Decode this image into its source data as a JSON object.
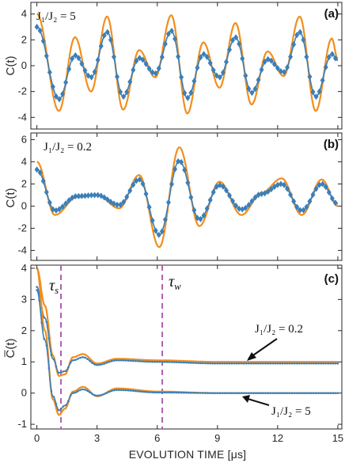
{
  "colors": {
    "theory": "#f28e1c",
    "data": "#3b7fb9",
    "marker": "#3b7fb9",
    "vline": "#b060b0",
    "axis": "#262626"
  },
  "xaxis": {
    "label": "EVOLUTION TIME [μs]",
    "ticks": [
      "0",
      "3",
      "6",
      "9",
      "12",
      "15"
    ],
    "range": [
      -0.3,
      15.2
    ]
  },
  "chart_data": [
    {
      "type": "line",
      "panel": "(a)",
      "annotation": "J₁/J₂ = 5",
      "ylabel": "C(t)",
      "ylim": [
        -4.9,
        4.9
      ],
      "yticks": [
        "4",
        "2",
        "0",
        "-2",
        "-4"
      ],
      "series": [
        {
          "style": "theory",
          "x": [
            0,
            1.1,
            1.9,
            2.7,
            3.5,
            4.3,
            5.1,
            5.9,
            6.7,
            7.5,
            8.3,
            9.1,
            9.9,
            10.7,
            11.5,
            12.3,
            13.1,
            13.9,
            14.7,
            15.0
          ],
          "y": [
            4.0,
            -3.5,
            2.2,
            -2.0,
            3.8,
            -3.4,
            1.2,
            -0.9,
            3.9,
            -3.7,
            1.8,
            -1.7,
            3.3,
            -3.0,
            1.1,
            -0.8,
            3.8,
            -3.5,
            2.1,
            0.5
          ]
        },
        {
          "style": "data",
          "x": [
            0,
            1.1,
            1.9,
            2.7,
            3.5,
            4.3,
            5.1,
            5.9,
            6.7,
            7.5,
            8.3,
            9.1,
            9.9,
            10.7,
            11.5,
            12.3,
            13.1,
            13.9,
            14.7,
            15.0
          ],
          "y": [
            3.0,
            -2.6,
            0.8,
            -0.9,
            2.6,
            -2.4,
            0.6,
            -0.6,
            2.7,
            -2.5,
            0.9,
            -0.9,
            2.2,
            -2.1,
            0.5,
            -0.5,
            2.6,
            -2.4,
            0.9,
            0.4
          ]
        }
      ]
    },
    {
      "type": "line",
      "panel": "(b)",
      "annotation": "J₁/J₂ = 0.2",
      "ylabel": "C(t)",
      "ylim": [
        -4.9,
        6.6
      ],
      "yticks": [
        "6",
        "4",
        "2",
        "0",
        "-2",
        "-4"
      ],
      "series": [
        {
          "style": "theory",
          "x": [
            0,
            0.9,
            2.0,
            3.0,
            4.1,
            5.1,
            6.1,
            7.1,
            8.1,
            9.1,
            10.2,
            11.2,
            12.2,
            13.2,
            14.2,
            15.0
          ],
          "y": [
            4.0,
            -0.8,
            0.8,
            1.0,
            -0.2,
            2.8,
            -3.7,
            5.3,
            -1.8,
            2.2,
            -0.8,
            1.2,
            2.5,
            -0.8,
            2.4,
            0.0
          ]
        },
        {
          "style": "data",
          "x": [
            0,
            0.9,
            2.0,
            3.0,
            4.1,
            5.1,
            6.1,
            7.1,
            8.1,
            9.1,
            10.2,
            11.2,
            12.2,
            13.2,
            14.2,
            15.0
          ],
          "y": [
            3.3,
            -0.4,
            0.9,
            1.0,
            0.1,
            2.4,
            -2.6,
            4.1,
            -1.2,
            1.9,
            -0.3,
            1.1,
            2.0,
            -0.4,
            2.0,
            0.2
          ]
        }
      ]
    },
    {
      "type": "line",
      "panel": "(c)",
      "ylabel": "C̅(t)",
      "ylim": [
        -1.15,
        4.1
      ],
      "yticks": [
        "4",
        "3",
        "2",
        "1",
        "0",
        "-1"
      ],
      "vlines": [
        {
          "x": 1.2,
          "label": "τ",
          "sub": "s"
        },
        {
          "x": 6.25,
          "label": "τ",
          "sub": "w"
        }
      ],
      "annotations": [
        "J₁/J₂ = 0.2",
        "J₁/J₂ = 5"
      ],
      "series": [
        {
          "style": "theory",
          "group": "0.2",
          "x": [
            0,
            0.4,
            0.8,
            1.1,
            1.4,
            1.8,
            2.3,
            3.0,
            4.0,
            6.0,
            9.0,
            12.0,
            15.0
          ],
          "y": [
            4.0,
            2.8,
            1.2,
            0.55,
            0.6,
            1.15,
            1.25,
            0.95,
            1.1,
            1.05,
            1.0,
            1.0,
            1.0
          ]
        },
        {
          "style": "data",
          "group": "0.2",
          "x": [
            0,
            0.4,
            0.8,
            1.1,
            1.4,
            1.8,
            2.3,
            3.0,
            4.0,
            6.0,
            9.0,
            12.0,
            15.0
          ],
          "y": [
            3.4,
            2.4,
            1.1,
            0.65,
            0.7,
            1.05,
            1.15,
            0.9,
            1.05,
            1.0,
            0.95,
            0.95,
            0.95
          ]
        },
        {
          "style": "theory",
          "group": "5",
          "x": [
            0,
            0.4,
            0.8,
            1.1,
            1.4,
            1.8,
            2.3,
            3.0,
            4.0,
            6.0,
            9.0,
            12.0,
            15.0
          ],
          "y": [
            4.0,
            2.0,
            -0.2,
            -0.7,
            -0.5,
            0.05,
            0.2,
            -0.1,
            0.15,
            0.05,
            0.0,
            0.0,
            0.0
          ]
        },
        {
          "style": "data",
          "group": "5",
          "x": [
            0,
            0.4,
            0.8,
            1.1,
            1.4,
            1.8,
            2.3,
            3.0,
            4.0,
            6.0,
            9.0,
            12.0,
            15.0
          ],
          "y": [
            3.3,
            1.7,
            -0.1,
            -0.55,
            -0.4,
            0.0,
            0.12,
            -0.08,
            0.1,
            0.02,
            0.0,
            0.0,
            0.0
          ]
        }
      ]
    }
  ]
}
